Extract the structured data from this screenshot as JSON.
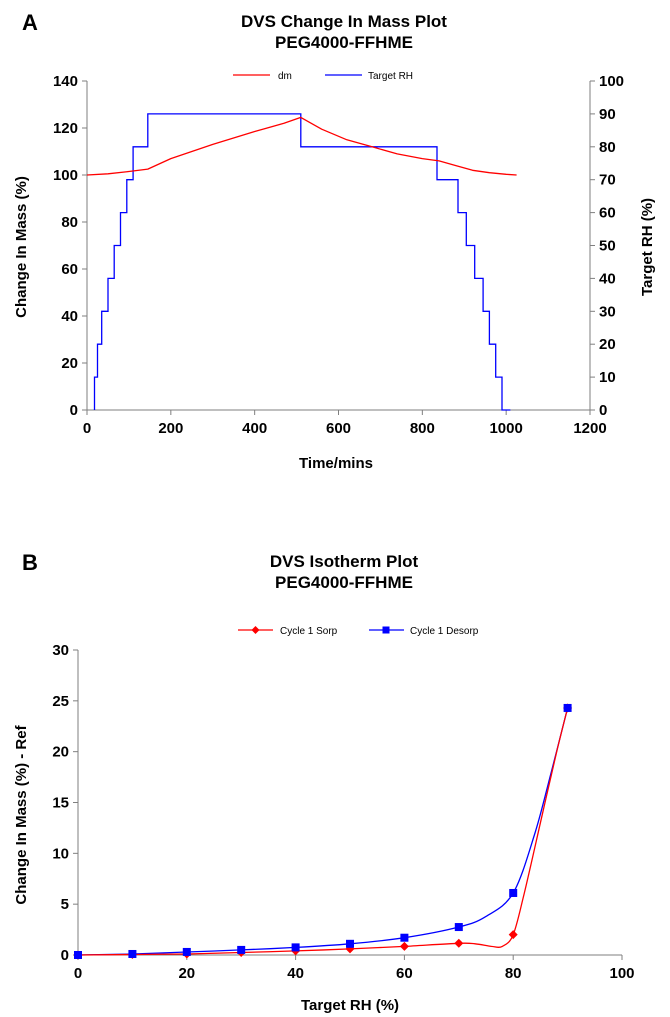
{
  "colors": {
    "red": "#ff0000",
    "blue": "#0000ff",
    "axis": "#7f7f7f"
  },
  "chart_data": [
    {
      "panel_label": "A",
      "type": "line",
      "title": "DVS Change In Mass Plot",
      "subtitle": "PEG4000-FFHME",
      "xlabel": "Time/mins",
      "ylabel": "Change In Mass (%)",
      "y2label": "Target RH (%)",
      "xlim": [
        0,
        1200
      ],
      "ylim": [
        0,
        140
      ],
      "y2lim": [
        0,
        100
      ],
      "xticks": [
        0,
        200,
        400,
        600,
        800,
        1000,
        1200
      ],
      "yticks": [
        0,
        20,
        40,
        60,
        80,
        100,
        120,
        140
      ],
      "y2ticks": [
        0,
        10,
        20,
        30,
        40,
        50,
        60,
        70,
        80,
        90,
        100
      ],
      "grid": false,
      "legend_position": "top-center",
      "series": [
        {
          "name": "dm",
          "axis": "left",
          "color": "red",
          "x": [
            0,
            50,
            100,
            145,
            200,
            300,
            400,
            470,
            510,
            560,
            620,
            680,
            740,
            800,
            840,
            880,
            920,
            960,
            1000,
            1025
          ],
          "y": [
            100,
            100.5,
            101.5,
            102.5,
            107,
            113,
            118.5,
            122,
            124.5,
            119.5,
            115,
            112,
            109,
            107,
            106,
            104,
            102,
            101,
            100.3,
            100
          ]
        },
        {
          "name": "Target RH",
          "axis": "right",
          "color": "blue",
          "style": "step",
          "x": [
            18,
            18,
            25,
            25,
            35,
            35,
            50,
            50,
            65,
            65,
            80,
            80,
            95,
            95,
            110,
            110,
            145,
            145,
            510,
            510,
            835,
            835,
            885,
            885,
            905,
            905,
            925,
            925,
            945,
            945,
            960,
            960,
            975,
            975,
            990,
            990,
            1010,
            1010
          ],
          "y": [
            0,
            10,
            10,
            20,
            20,
            30,
            30,
            40,
            40,
            50,
            50,
            60,
            60,
            70,
            70,
            80,
            80,
            90,
            90,
            80,
            80,
            70,
            70,
            60,
            60,
            50,
            50,
            40,
            40,
            30,
            30,
            20,
            20,
            10,
            10,
            0,
            0,
            0
          ]
        }
      ]
    },
    {
      "panel_label": "B",
      "type": "line",
      "title": "DVS Isotherm Plot",
      "subtitle": "PEG4000-FFHME",
      "xlabel": "Target RH (%)",
      "ylabel": "Change In Mass (%) - Ref",
      "xlim": [
        0,
        100
      ],
      "ylim": [
        0,
        30
      ],
      "xticks": [
        0,
        20,
        40,
        60,
        80,
        100
      ],
      "yticks": [
        0,
        5,
        10,
        15,
        20,
        25,
        30
      ],
      "grid": false,
      "legend_position": "top-center",
      "series": [
        {
          "name": "Cycle 1 Sorp",
          "color": "red",
          "marker": "diamond",
          "x": [
            0,
            10,
            20,
            30,
            40,
            50,
            60,
            70,
            80,
            90
          ],
          "y": [
            0,
            0.05,
            0.1,
            0.25,
            0.4,
            0.6,
            0.85,
            1.15,
            2.0,
            24.3
          ],
          "curve": [
            [
              0,
              0
            ],
            [
              10,
              0.05
            ],
            [
              20,
              0.1
            ],
            [
              30,
              0.25
            ],
            [
              40,
              0.4
            ],
            [
              50,
              0.6
            ],
            [
              60,
              0.85
            ],
            [
              70,
              1.15
            ],
            [
              73,
              1.1
            ],
            [
              76,
              0.85
            ],
            [
              78,
              0.85
            ],
            [
              80,
              2.0
            ],
            [
              82,
              6
            ],
            [
              85,
              13
            ],
            [
              88,
              20
            ],
            [
              90,
              24.3
            ]
          ]
        },
        {
          "name": "Cycle 1 Desorp",
          "color": "blue",
          "marker": "square",
          "x": [
            0,
            10,
            20,
            30,
            40,
            50,
            60,
            70,
            80,
            90
          ],
          "y": [
            0,
            0.1,
            0.3,
            0.5,
            0.75,
            1.1,
            1.7,
            2.75,
            6.1,
            24.3
          ],
          "curve": [
            [
              0,
              0
            ],
            [
              10,
              0.1
            ],
            [
              20,
              0.3
            ],
            [
              30,
              0.5
            ],
            [
              40,
              0.75
            ],
            [
              50,
              1.1
            ],
            [
              60,
              1.7
            ],
            [
              70,
              2.75
            ],
            [
              75,
              3.8
            ],
            [
              80,
              6.1
            ],
            [
              84,
              12
            ],
            [
              87,
              18
            ],
            [
              90,
              24.3
            ]
          ]
        }
      ]
    }
  ]
}
